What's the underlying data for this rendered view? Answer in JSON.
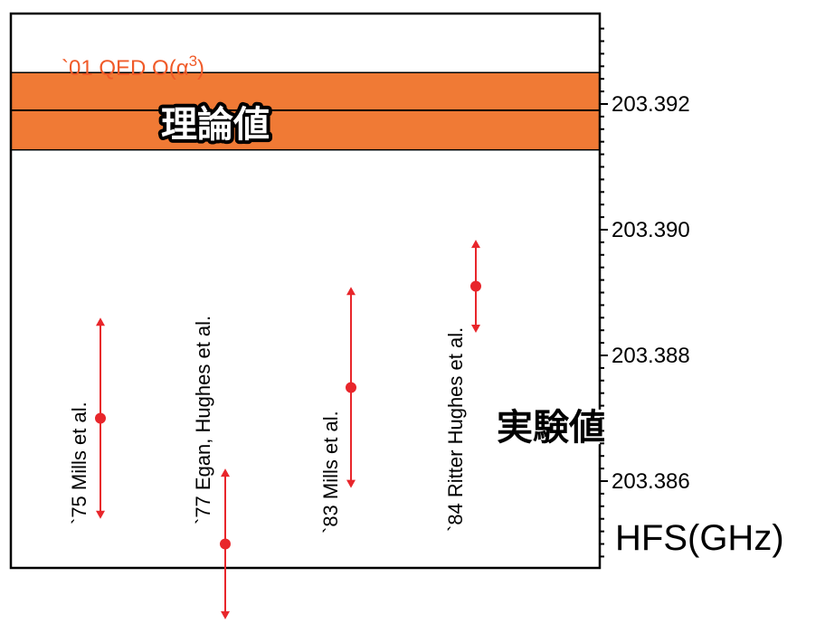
{
  "chart_data": {
    "type": "scatter",
    "title": "",
    "xlabel": "",
    "ylabel": "HFS(GHz)",
    "ylim": [
      203.3848,
      203.3935
    ],
    "yticks": [
      "203.386",
      "203.388",
      "203.390",
      "203.392"
    ],
    "ytick_values": [
      203.386,
      203.388,
      203.39,
      203.392
    ],
    "grid": false,
    "theory": {
      "label": "`01 QED O(α",
      "label_sup": "3",
      "label_close": ")",
      "value": 203.3919,
      "band": [
        203.39127,
        203.3925
      ],
      "band_color": "#f07a35",
      "line_color": "#000000",
      "label_color": "#f05a28"
    },
    "experiments": [
      {
        "label": "`75  Mills et al.",
        "value": 203.387,
        "error": 0.0016
      },
      {
        "label": "`77  Egan, Hughes et al.",
        "value": 203.385,
        "error": 0.0012
      },
      {
        "label": "`83  Mills et al.",
        "value": 203.38749,
        "error": 0.0016
      },
      {
        "label": "`84  Ritter Hughes et al.",
        "value": 203.3891,
        "error": 0.00074
      }
    ],
    "point_color": "#e8262b",
    "annotations": {
      "theory_text": "理論値",
      "experiment_text": "実験値"
    }
  }
}
